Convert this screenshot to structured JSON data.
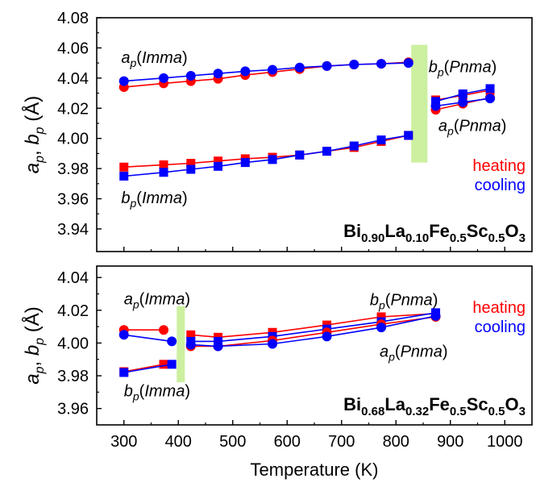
{
  "x_axis": {
    "label": "Temperature (K)",
    "ticks": [
      300,
      400,
      500,
      600,
      700,
      800,
      900,
      1000
    ]
  },
  "colors": {
    "heating": "#ff0000",
    "cooling": "#0000ff",
    "transition_band": "#ccf0a0",
    "axis": "#000000"
  },
  "chart_data": [
    {
      "type": "line",
      "panel": "top",
      "xlim": [
        250,
        1050
      ],
      "ylim": [
        3.925,
        4.08
      ],
      "ylabel_parts": [
        {
          "t": "a",
          "style": "italic"
        },
        {
          "t": "p",
          "style": "italic-sub"
        },
        {
          "t": ", ",
          "style": "normal"
        },
        {
          "t": "b",
          "style": "italic"
        },
        {
          "t": "p",
          "style": "italic-sub"
        },
        {
          "t": " (Å)",
          "style": "normal"
        }
      ],
      "yticks": [
        "3.94",
        "3.96",
        "3.98",
        "4.00",
        "4.02",
        "4.04",
        "4.06",
        "4.08"
      ],
      "transition_band": [
        828,
        858
      ],
      "band_yrange": [
        3.984,
        4.062
      ],
      "legend": [
        "heating",
        "cooling"
      ],
      "compound": [
        {
          "t": "Bi",
          "sub": false
        },
        {
          "t": "0.90",
          "sub": true
        },
        {
          "t": "La",
          "sub": false
        },
        {
          "t": "0.10",
          "sub": true
        },
        {
          "t": "Fe",
          "sub": false
        },
        {
          "t": "0.5",
          "sub": true
        },
        {
          "t": "Sc",
          "sub": false
        },
        {
          "t": "0.5",
          "sub": true
        },
        {
          "t": "O",
          "sub": false
        },
        {
          "t": "3",
          "sub": true
        }
      ],
      "annotations": [
        {
          "sym": "a",
          "sub": "p",
          "phase": "Imma",
          "x": 295,
          "y": 4.05
        },
        {
          "sym": "b",
          "sub": "p",
          "phase": "Imma",
          "x": 295,
          "y": 3.957
        },
        {
          "sym": "b",
          "sub": "p",
          "phase": "Pnma",
          "x": 860,
          "y": 4.044
        },
        {
          "sym": "a",
          "sub": "p",
          "phase": "Pnma",
          "x": 878,
          "y": 4.005
        }
      ],
      "series": [
        {
          "name": "heating",
          "marker": "circle",
          "x": [
            300,
            373,
            423,
            473,
            523,
            573,
            623,
            673,
            723,
            773,
            823
          ],
          "y": [
            4.034,
            4.0365,
            4.038,
            4.0395,
            4.042,
            4.044,
            4.046,
            4.048,
            4.049,
            4.0495,
            4.0505
          ]
        },
        {
          "name": "cooling",
          "marker": "circle",
          "x": [
            300,
            373,
            423,
            473,
            523,
            573,
            623,
            673,
            723,
            773,
            823
          ],
          "y": [
            4.038,
            4.04,
            4.0415,
            4.043,
            4.0445,
            4.0455,
            4.047,
            4.048,
            4.049,
            4.0495,
            4.05
          ]
        },
        {
          "name": "heating",
          "marker": "square",
          "x": [
            300,
            373,
            423,
            473,
            523,
            573,
            623,
            673,
            723,
            773,
            823
          ],
          "y": [
            3.981,
            3.9825,
            3.9835,
            3.985,
            3.9865,
            3.9875,
            3.989,
            3.9915,
            3.994,
            3.998,
            4.002
          ]
        },
        {
          "name": "cooling",
          "marker": "square",
          "x": [
            300,
            373,
            423,
            473,
            523,
            573,
            623,
            673,
            723,
            773,
            823
          ],
          "y": [
            3.975,
            3.9775,
            3.9795,
            3.9815,
            3.984,
            3.986,
            3.989,
            3.9915,
            3.995,
            3.999,
            4.002
          ]
        },
        {
          "name": "heating",
          "marker": "square",
          "x": [
            873,
            923,
            973
          ],
          "y": [
            4.0255,
            4.0285,
            4.032
          ]
        },
        {
          "name": "cooling",
          "marker": "square",
          "x": [
            873,
            923,
            973
          ],
          "y": [
            4.0245,
            4.0295,
            4.033
          ]
        },
        {
          "name": "heating",
          "marker": "circle",
          "x": [
            873,
            923,
            973
          ],
          "y": [
            4.019,
            4.023,
            4.027
          ]
        },
        {
          "name": "cooling",
          "marker": "circle",
          "x": [
            873,
            923,
            973
          ],
          "y": [
            4.0215,
            4.024,
            4.0265
          ]
        }
      ]
    },
    {
      "type": "line",
      "panel": "bottom",
      "xlim": [
        250,
        1050
      ],
      "ylim": [
        3.95,
        4.047
      ],
      "ylabel_parts": [
        {
          "t": "a",
          "style": "italic"
        },
        {
          "t": "p",
          "style": "italic-sub"
        },
        {
          "t": ", ",
          "style": "normal"
        },
        {
          "t": "b",
          "style": "italic"
        },
        {
          "t": "p",
          "style": "italic-sub"
        },
        {
          "t": " (Å)",
          "style": "normal"
        }
      ],
      "yticks": [
        "3.96",
        "3.98",
        "4.00",
        "4.02",
        "4.04"
      ],
      "transition_band": [
        397,
        412
      ],
      "band_yrange": [
        3.976,
        4.0225
      ],
      "legend": [
        "heating",
        "cooling"
      ],
      "compound": [
        {
          "t": "Bi",
          "sub": false
        },
        {
          "t": "0.68",
          "sub": true
        },
        {
          "t": "La",
          "sub": false
        },
        {
          "t": "0.32",
          "sub": true
        },
        {
          "t": "Fe",
          "sub": false
        },
        {
          "t": "0.5",
          "sub": true
        },
        {
          "t": "Sc",
          "sub": false
        },
        {
          "t": "0.5",
          "sub": true
        },
        {
          "t": "O",
          "sub": false
        },
        {
          "t": "3",
          "sub": true
        }
      ],
      "annotations": [
        {
          "sym": "a",
          "sub": "p",
          "phase": "Imma",
          "x": 300,
          "y": 4.0235
        },
        {
          "sym": "b",
          "sub": "p",
          "phase": "Imma",
          "x": 300,
          "y": 3.9675
        },
        {
          "sym": "b",
          "sub": "p",
          "phase": "Pnma",
          "x": 752,
          "y": 4.023
        },
        {
          "sym": "a",
          "sub": "p",
          "phase": "Pnma",
          "x": 770,
          "y": 3.9915
        }
      ],
      "series": [
        {
          "name": "heating",
          "marker": "circle",
          "x": [
            300,
            373
          ],
          "y": [
            4.008,
            4.008
          ]
        },
        {
          "name": "cooling",
          "marker": "circle",
          "x": [
            300,
            388
          ],
          "y": [
            4.005,
            4.001
          ]
        },
        {
          "name": "heating",
          "marker": "square",
          "x": [
            300,
            373
          ],
          "y": [
            3.9825,
            3.987
          ]
        },
        {
          "name": "cooling",
          "marker": "square",
          "x": [
            300,
            388
          ],
          "y": [
            3.982,
            3.987
          ]
        },
        {
          "name": "heating",
          "marker": "square",
          "x": [
            423,
            473,
            573,
            673,
            773,
            873
          ],
          "y": [
            4.005,
            4.0035,
            4.0065,
            4.011,
            4.016,
            4.018
          ]
        },
        {
          "name": "cooling",
          "marker": "square",
          "x": [
            423,
            473,
            573,
            673,
            773,
            873
          ],
          "y": [
            4.001,
            4.001,
            4.004,
            4.0085,
            4.013,
            4.0185
          ]
        },
        {
          "name": "heating",
          "marker": "circle",
          "x": [
            423,
            473,
            573,
            673,
            773,
            873
          ],
          "y": [
            3.998,
            3.998,
            4.0015,
            4.0065,
            4.0115,
            4.016
          ]
        },
        {
          "name": "cooling",
          "marker": "circle",
          "x": [
            423,
            473,
            573,
            673,
            773,
            873
          ],
          "y": [
            3.999,
            3.998,
            3.9995,
            4.004,
            4.0095,
            4.0165
          ]
        }
      ]
    }
  ]
}
